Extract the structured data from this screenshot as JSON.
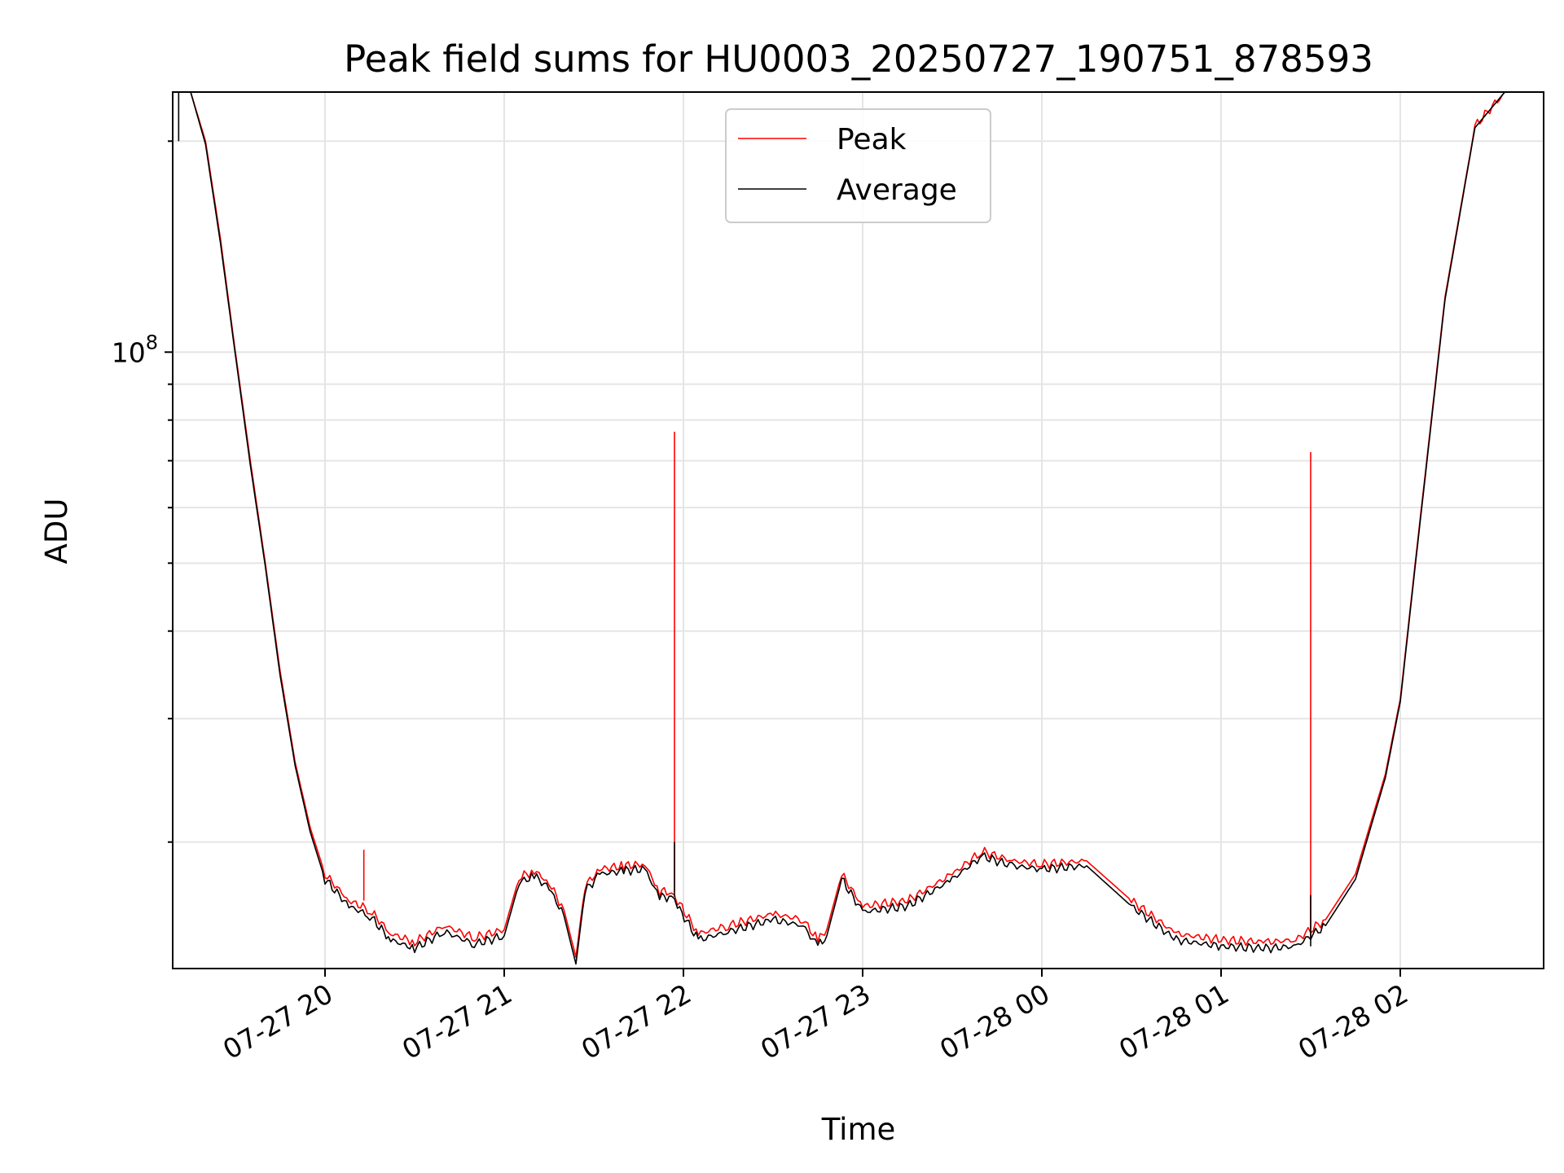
{
  "chart_data": {
    "type": "line",
    "title": "Peak field sums for HU0003_20250727_190751_878593",
    "xlabel": "Time",
    "ylabel": "ADU",
    "y_scale": "log",
    "y_tick_label": "10^8",
    "grid": true,
    "legend_position": "top-center",
    "x_tick_labels": [
      "07-27 20",
      "07-27 21",
      "07-27 22",
      "07-27 23",
      "07-28 00",
      "07-28 01",
      "07-28 02"
    ],
    "x_range": [
      "2025-07-27 19:09",
      "2025-07-28 02:48"
    ],
    "y_range": [
      13200000,
      235000000
    ],
    "colors": {
      "peak": "#ff0000",
      "average": "#000000",
      "grid": "#e5e5e5"
    },
    "series": [
      {
        "name": "Peak",
        "color": "#ff0000",
        "x": [
          "2025-07-27 19:11",
          "2025-07-27 19:15",
          "2025-07-27 19:20",
          "2025-07-27 19:25",
          "2025-07-27 19:30",
          "2025-07-27 19:35",
          "2025-07-27 19:40",
          "2025-07-27 19:45",
          "2025-07-27 19:50",
          "2025-07-27 19:55",
          "2025-07-27 20:00",
          "2025-07-27 20:08",
          "2025-07-27 20:15",
          "2025-07-27 20:22",
          "2025-07-27 20:30",
          "2025-07-27 20:40",
          "2025-07-27 20:50",
          "2025-07-27 21:00",
          "2025-07-27 21:05",
          "2025-07-27 21:10",
          "2025-07-27 21:15",
          "2025-07-27 21:20",
          "2025-07-27 21:24",
          "2025-07-27 21:27",
          "2025-07-27 21:32",
          "2025-07-27 21:40",
          "2025-07-27 21:47",
          "2025-07-27 21:52",
          "2025-07-27 21:56",
          "2025-07-27 21:58",
          "2025-07-27 22:05",
          "2025-07-27 22:15",
          "2025-07-27 22:30",
          "2025-07-27 22:40",
          "2025-07-27 22:45",
          "2025-07-27 22:48",
          "2025-07-27 22:53",
          "2025-07-27 23:00",
          "2025-07-27 23:15",
          "2025-07-27 23:30",
          "2025-07-27 23:40",
          "2025-07-27 23:50",
          "2025-07-28 00:00",
          "2025-07-28 00:15",
          "2025-07-28 00:30",
          "2025-07-28 00:45",
          "2025-07-28 01:00",
          "2025-07-28 01:15",
          "2025-07-28 01:25",
          "2025-07-28 01:35",
          "2025-07-28 01:45",
          "2025-07-28 01:55",
          "2025-07-28 02:00",
          "2025-07-28 02:05",
          "2025-07-28 02:15",
          "2025-07-28 02:25",
          "2025-07-28 02:35",
          "2025-07-28 02:48"
        ],
        "y": [
          235000000,
          235000000,
          200000000,
          145000000,
          100000000,
          70000000,
          50000000,
          35000000,
          26000000,
          21000000,
          18000000,
          16500000,
          16000000,
          14800000,
          14400000,
          15200000,
          14600000,
          15000000,
          17800000,
          18200000,
          17500000,
          16000000,
          13700000,
          17300000,
          18300000,
          18500000,
          18600000,
          17000000,
          17000000,
          16500000,
          14800000,
          15200000,
          15800000,
          15500000,
          14500000,
          15000000,
          18000000,
          16200000,
          16500000,
          18000000,
          19400000,
          18800000,
          18600000,
          18800000,
          16500000,
          14800000,
          14500000,
          14400000,
          14500000,
          15500000,
          18000000,
          25000000,
          32000000,
          50000000,
          120000000,
          210000000,
          235000000,
          235000000
        ],
        "spikes": [
          {
            "x": "2025-07-27 20:13",
            "y": 19500000
          },
          {
            "x": "2025-07-27 21:57",
            "y": 77000000
          },
          {
            "x": "2025-07-28 01:30",
            "y": 72000000
          }
        ]
      },
      {
        "name": "Average",
        "color": "#000000",
        "x": [
          "2025-07-27 19:11",
          "2025-07-27 19:15",
          "2025-07-27 19:20",
          "2025-07-27 19:25",
          "2025-07-27 19:30",
          "2025-07-27 19:35",
          "2025-07-27 19:40",
          "2025-07-27 19:45",
          "2025-07-27 19:50",
          "2025-07-27 19:55",
          "2025-07-27 20:00",
          "2025-07-27 20:08",
          "2025-07-27 20:15",
          "2025-07-27 20:22",
          "2025-07-27 20:30",
          "2025-07-27 20:40",
          "2025-07-27 20:50",
          "2025-07-27 21:00",
          "2025-07-27 21:05",
          "2025-07-27 21:10",
          "2025-07-27 21:15",
          "2025-07-27 21:20",
          "2025-07-27 21:24",
          "2025-07-27 21:27",
          "2025-07-27 21:32",
          "2025-07-27 21:40",
          "2025-07-27 21:47",
          "2025-07-27 21:52",
          "2025-07-27 21:56",
          "2025-07-27 21:58",
          "2025-07-27 22:05",
          "2025-07-27 22:15",
          "2025-07-27 22:30",
          "2025-07-27 22:40",
          "2025-07-27 22:45",
          "2025-07-27 22:48",
          "2025-07-27 22:53",
          "2025-07-27 23:00",
          "2025-07-27 23:15",
          "2025-07-27 23:30",
          "2025-07-27 23:40",
          "2025-07-27 23:50",
          "2025-07-28 00:00",
          "2025-07-28 00:15",
          "2025-07-28 00:30",
          "2025-07-28 00:45",
          "2025-07-28 01:00",
          "2025-07-28 01:15",
          "2025-07-28 01:25",
          "2025-07-28 01:35",
          "2025-07-28 01:45",
          "2025-07-28 01:55",
          "2025-07-28 02:00",
          "2025-07-28 02:05",
          "2025-07-28 02:15",
          "2025-07-28 02:25",
          "2025-07-28 02:35",
          "2025-07-28 02:48"
        ],
        "y": [
          235000000,
          235000000,
          198000000,
          143000000,
          99000000,
          69000000,
          49500000,
          34500000,
          25700000,
          20700000,
          17700000,
          16200000,
          15700000,
          14500000,
          14100000,
          14900000,
          14300000,
          14700000,
          17500000,
          17900000,
          17200000,
          15700000,
          13400000,
          17000000,
          18000000,
          18200000,
          18300000,
          16700000,
          16700000,
          16200000,
          14500000,
          14900000,
          15500000,
          15200000,
          14200000,
          14700000,
          17700000,
          15900000,
          16200000,
          17700000,
          19100000,
          18500000,
          18300000,
          18500000,
          16200000,
          14500000,
          14200000,
          14100000,
          14200000,
          15200000,
          17700000,
          24700000,
          31700000,
          49500000,
          119000000,
          209000000,
          235000000,
          235000000
        ],
        "spikes": [
          {
            "x": "2025-07-27 19:11",
            "y": 200000000
          },
          {
            "x": "2025-07-27 21:57",
            "y": 20000000
          },
          {
            "x": "2025-07-28 01:30",
            "y": 16800000
          }
        ]
      }
    ]
  }
}
